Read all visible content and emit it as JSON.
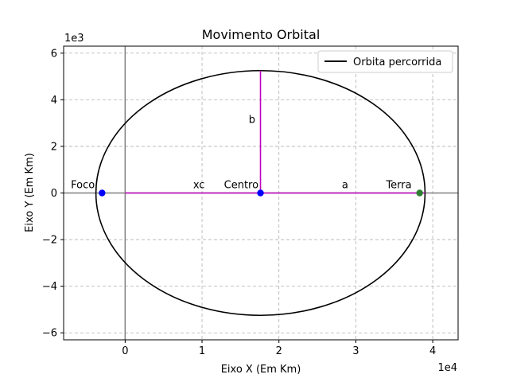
{
  "chart_data": {
    "type": "line",
    "title": "Movimento Orbital",
    "xlabel": "Eixo X (Em Km)",
    "ylabel": "Eixo Y (Em Km)",
    "x_offset_label": "1e4",
    "y_offset_label": "1e3",
    "xlim": [
      -8000,
      43300
    ],
    "ylim": [
      -6300,
      6300
    ],
    "x_ticks": [
      {
        "value": 0,
        "label": "0"
      },
      {
        "value": 10000,
        "label": "1"
      },
      {
        "value": 20000,
        "label": "2"
      },
      {
        "value": 30000,
        "label": "3"
      },
      {
        "value": 40000,
        "label": "4"
      }
    ],
    "y_ticks": [
      {
        "value": -6000,
        "label": "−6"
      },
      {
        "value": -4000,
        "label": "−4"
      },
      {
        "value": -2000,
        "label": "−2"
      },
      {
        "value": 0,
        "label": "0"
      },
      {
        "value": 2000,
        "label": "2"
      },
      {
        "value": 4000,
        "label": "4"
      },
      {
        "value": 6000,
        "label": "6"
      }
    ],
    "grid": true,
    "legend": {
      "position": "top-right",
      "entries": [
        {
          "name": "Orbita percorrida",
          "color": "#000000"
        }
      ]
    },
    "orbit": {
      "name": "Orbita percorrida",
      "center_x": 17600,
      "center_y": 0,
      "a": 21400,
      "b": 5250,
      "color": "#000000"
    },
    "lines": [
      {
        "name": "xc",
        "x": [
          0,
          17600
        ],
        "y": [
          0,
          0
        ],
        "color": "#bf00bf"
      },
      {
        "name": "a",
        "x": [
          17600,
          39000
        ],
        "y": [
          0,
          0
        ],
        "color": "#bf00bf"
      },
      {
        "name": "b",
        "x": [
          17600,
          17600
        ],
        "y": [
          0,
          5250
        ],
        "color": "#bf00bf"
      }
    ],
    "points": [
      {
        "name": "Foco",
        "x": -3000,
        "y": 0,
        "color": "#0000ff"
      },
      {
        "name": "Centro",
        "x": 17600,
        "y": 0,
        "color": "#0000ff"
      },
      {
        "name": "Terra",
        "x": 38300,
        "y": 0,
        "color": "#2e7d32"
      }
    ],
    "annotations": [
      {
        "text": "Foco",
        "x": -5500,
        "y": 0
      },
      {
        "text": "xc",
        "x": 9600,
        "y": 0
      },
      {
        "text": "Centro",
        "x": 15100,
        "y": 0
      },
      {
        "text": "b",
        "x": 16500,
        "y": 2800
      },
      {
        "text": "a",
        "x": 28600,
        "y": 0
      },
      {
        "text": "Terra",
        "x": 35600,
        "y": 0
      }
    ],
    "axis_lines": [
      {
        "orientation": "horizontal",
        "value": 0
      },
      {
        "orientation": "vertical",
        "value": 0
      }
    ]
  }
}
